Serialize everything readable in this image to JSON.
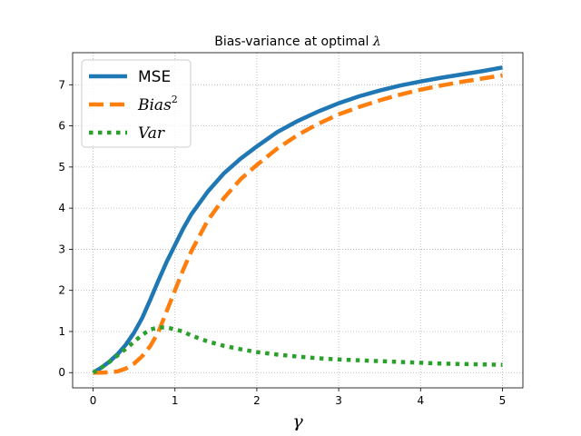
{
  "chart_data": {
    "type": "line",
    "title_prefix": "Bias-variance at optimal ",
    "title_symbol": "λ",
    "xlabel": "γ",
    "ylabel": "",
    "xlim": [
      -0.25,
      5.25
    ],
    "ylim": [
      -0.37,
      7.78
    ],
    "xticks": [
      0,
      1,
      2,
      3,
      4,
      5
    ],
    "yticks": [
      0,
      1,
      2,
      3,
      4,
      5,
      6,
      7
    ],
    "grid": true,
    "legend_position": "top-left",
    "series": [
      {
        "name": "MSE",
        "legend_label": "MSE",
        "style": "solid",
        "color": "#1f77b4",
        "x": [
          0,
          0.1,
          0.2,
          0.3,
          0.4,
          0.5,
          0.6,
          0.7,
          0.8,
          0.9,
          1.0,
          1.1,
          1.2,
          1.4,
          1.6,
          1.8,
          2.0,
          2.25,
          2.5,
          2.75,
          3.0,
          3.25,
          3.5,
          3.75,
          4.0,
          4.25,
          4.5,
          4.75,
          5.0
        ],
        "y": [
          0.0,
          0.12,
          0.27,
          0.45,
          0.68,
          0.97,
          1.33,
          1.78,
          2.25,
          2.7,
          3.1,
          3.5,
          3.85,
          4.4,
          4.85,
          5.2,
          5.5,
          5.85,
          6.12,
          6.35,
          6.55,
          6.72,
          6.86,
          6.98,
          7.08,
          7.17,
          7.25,
          7.33,
          7.42
        ]
      },
      {
        "name": "Bias2",
        "legend_label": "Bias",
        "legend_sup": "2",
        "style": "dashed",
        "color": "#ff7f0e",
        "x": [
          0,
          0.1,
          0.2,
          0.3,
          0.4,
          0.5,
          0.6,
          0.7,
          0.8,
          0.9,
          1.0,
          1.1,
          1.2,
          1.4,
          1.6,
          1.8,
          2.0,
          2.25,
          2.5,
          2.75,
          3.0,
          3.25,
          3.5,
          3.75,
          4.0,
          4.25,
          4.5,
          4.75,
          5.0
        ],
        "y": [
          0.0,
          0.0,
          0.01,
          0.03,
          0.1,
          0.22,
          0.4,
          0.65,
          1.0,
          1.5,
          2.0,
          2.5,
          2.95,
          3.7,
          4.25,
          4.7,
          5.05,
          5.45,
          5.78,
          6.05,
          6.28,
          6.46,
          6.62,
          6.76,
          6.88,
          6.98,
          7.07,
          7.15,
          7.23
        ]
      },
      {
        "name": "Var",
        "legend_label": "Var",
        "style": "dotted",
        "color": "#2ca02c",
        "x": [
          0,
          0.1,
          0.2,
          0.3,
          0.4,
          0.5,
          0.6,
          0.7,
          0.8,
          0.9,
          1.0,
          1.1,
          1.2,
          1.4,
          1.6,
          1.8,
          2.0,
          2.25,
          2.5,
          2.75,
          3.0,
          3.25,
          3.5,
          3.75,
          4.0,
          4.25,
          4.5,
          4.75,
          5.0
        ],
        "y": [
          0.0,
          0.12,
          0.26,
          0.42,
          0.58,
          0.75,
          0.92,
          1.05,
          1.1,
          1.1,
          1.05,
          1.0,
          0.9,
          0.76,
          0.65,
          0.57,
          0.5,
          0.44,
          0.39,
          0.35,
          0.32,
          0.3,
          0.28,
          0.26,
          0.24,
          0.22,
          0.21,
          0.2,
          0.19
        ]
      }
    ]
  }
}
